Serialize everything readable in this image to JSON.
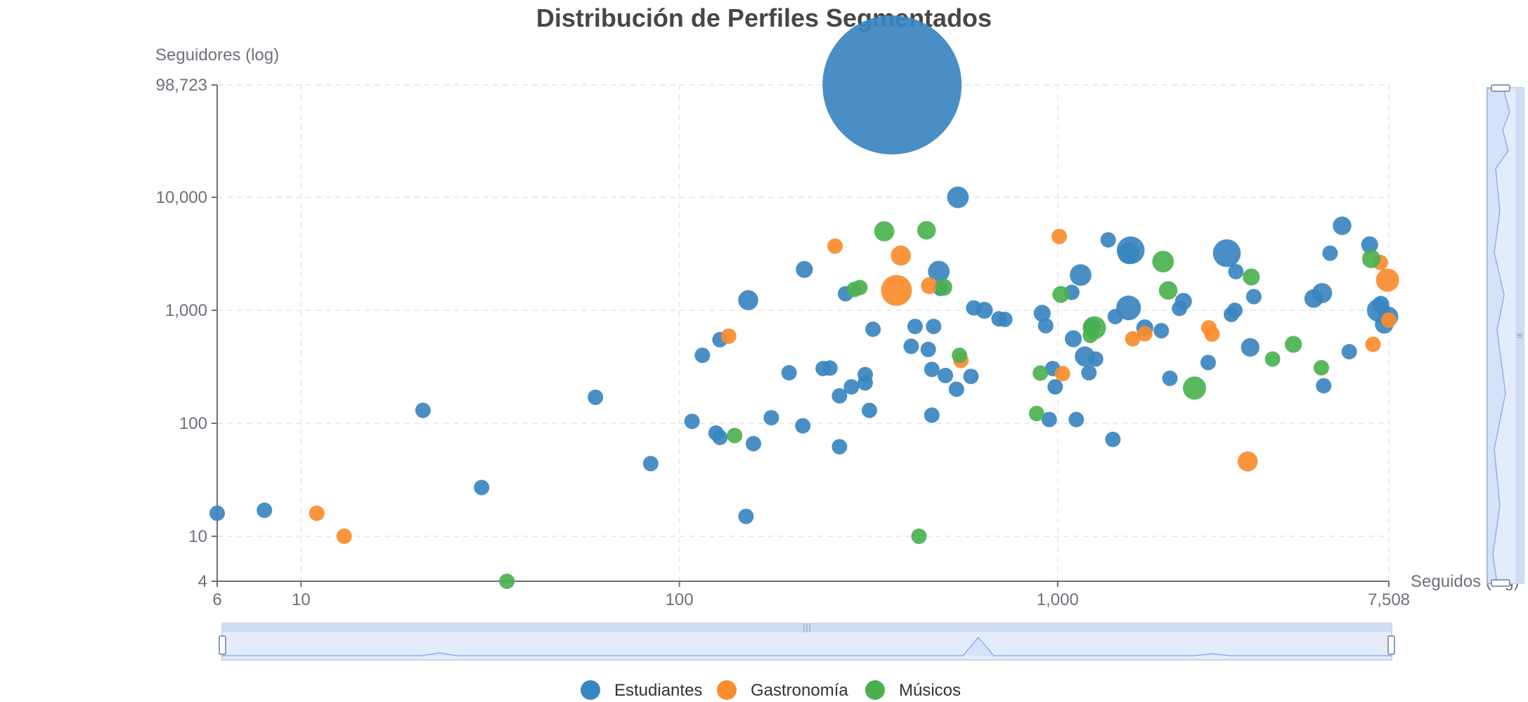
{
  "colors": {
    "series": [
      "#3a86c0",
      "#fa8c2e",
      "#4bb14f"
    ],
    "zoom_fill": "#e4ecfb",
    "zoom_border": "#c7d3ea",
    "zoom_line": "#8fb0e6"
  },
  "chart_data": {
    "type": "scatter",
    "title": "Distribución de Perfiles Segmentados",
    "xlabel": "Seguidos (log)",
    "ylabel": "Seguidores (log)",
    "x_scale": "log",
    "y_scale": "log",
    "xlim": [
      6,
      7508
    ],
    "ylim": [
      4,
      98723
    ],
    "x_ticks": [
      "6",
      "10",
      "100",
      "1,000",
      "7,508"
    ],
    "y_ticks": [
      "4",
      "10",
      "100",
      "1,000",
      "10,000",
      "98,723"
    ],
    "grid": true,
    "legend_position": "bottom",
    "data_zoom": [
      "x-slider-bottom",
      "y-slider-right"
    ],
    "series": [
      {
        "name": "Estudiantes",
        "points": [
          {
            "x": 6,
            "y": 16,
            "s": 1
          },
          {
            "x": 8,
            "y": 17,
            "s": 1
          },
          {
            "x": 21,
            "y": 130,
            "s": 1
          },
          {
            "x": 30,
            "y": 27,
            "s": 1
          },
          {
            "x": 60,
            "y": 170,
            "s": 1
          },
          {
            "x": 84,
            "y": 44,
            "s": 1
          },
          {
            "x": 108,
            "y": 104,
            "s": 1
          },
          {
            "x": 115,
            "y": 400,
            "s": 1
          },
          {
            "x": 125,
            "y": 82,
            "s": 1
          },
          {
            "x": 128,
            "y": 75,
            "s": 1
          },
          {
            "x": 128,
            "y": 550,
            "s": 1
          },
          {
            "x": 150,
            "y": 15,
            "s": 1
          },
          {
            "x": 152,
            "y": 1230,
            "s": 1.3
          },
          {
            "x": 157,
            "y": 66,
            "s": 1
          },
          {
            "x": 175,
            "y": 112,
            "s": 1
          },
          {
            "x": 195,
            "y": 280,
            "s": 1
          },
          {
            "x": 212,
            "y": 95,
            "s": 1
          },
          {
            "x": 214,
            "y": 2300,
            "s": 1.1
          },
          {
            "x": 240,
            "y": 305,
            "s": 1
          },
          {
            "x": 250,
            "y": 308,
            "s": 1
          },
          {
            "x": 265,
            "y": 62,
            "s": 1
          },
          {
            "x": 265,
            "y": 175,
            "s": 1
          },
          {
            "x": 275,
            "y": 1400,
            "s": 1
          },
          {
            "x": 285,
            "y": 210,
            "s": 1
          },
          {
            "x": 310,
            "y": 228,
            "s": 1
          },
          {
            "x": 310,
            "y": 270,
            "s": 1
          },
          {
            "x": 318,
            "y": 130,
            "s": 1
          },
          {
            "x": 325,
            "y": 680,
            "s": 1
          },
          {
            "x": 365,
            "y": 98723,
            "s": 9
          },
          {
            "x": 410,
            "y": 480,
            "s": 1
          },
          {
            "x": 420,
            "y": 720,
            "s": 1
          },
          {
            "x": 455,
            "y": 450,
            "s": 1
          },
          {
            "x": 465,
            "y": 300,
            "s": 1
          },
          {
            "x": 465,
            "y": 118,
            "s": 1
          },
          {
            "x": 470,
            "y": 720,
            "s": 1
          },
          {
            "x": 485,
            "y": 2200,
            "s": 1.4
          },
          {
            "x": 490,
            "y": 1560,
            "s": 1
          },
          {
            "x": 505,
            "y": 265,
            "s": 1
          },
          {
            "x": 540,
            "y": 200,
            "s": 1
          },
          {
            "x": 545,
            "y": 10000,
            "s": 1.4
          },
          {
            "x": 590,
            "y": 260,
            "s": 1
          },
          {
            "x": 600,
            "y": 1050,
            "s": 1
          },
          {
            "x": 640,
            "y": 1000,
            "s": 1.1
          },
          {
            "x": 700,
            "y": 840,
            "s": 1
          },
          {
            "x": 725,
            "y": 830,
            "s": 1
          },
          {
            "x": 910,
            "y": 940,
            "s": 1.1
          },
          {
            "x": 930,
            "y": 730,
            "s": 1
          },
          {
            "x": 950,
            "y": 108,
            "s": 1
          },
          {
            "x": 970,
            "y": 305,
            "s": 1
          },
          {
            "x": 985,
            "y": 210,
            "s": 1
          },
          {
            "x": 1090,
            "y": 1440,
            "s": 1
          },
          {
            "x": 1100,
            "y": 560,
            "s": 1.1
          },
          {
            "x": 1120,
            "y": 108,
            "s": 1
          },
          {
            "x": 1180,
            "y": 390,
            "s": 1.3
          },
          {
            "x": 1210,
            "y": 280,
            "s": 1
          },
          {
            "x": 1230,
            "y": 720,
            "s": 1.1
          },
          {
            "x": 1260,
            "y": 370,
            "s": 1
          },
          {
            "x": 1360,
            "y": 4200,
            "s": 1
          },
          {
            "x": 1400,
            "y": 72,
            "s": 1
          },
          {
            "x": 1420,
            "y": 880,
            "s": 1
          },
          {
            "x": 1150,
            "y": 2050,
            "s": 1.4
          },
          {
            "x": 1540,
            "y": 1050,
            "s": 1.6
          },
          {
            "x": 1540,
            "y": 3200,
            "s": 1.4
          },
          {
            "x": 1560,
            "y": 3400,
            "s": 1.8
          },
          {
            "x": 1700,
            "y": 700,
            "s": 1.1
          },
          {
            "x": 1880,
            "y": 660,
            "s": 1
          },
          {
            "x": 1980,
            "y": 250,
            "s": 1
          },
          {
            "x": 2100,
            "y": 1040,
            "s": 1
          },
          {
            "x": 2150,
            "y": 1200,
            "s": 1.1
          },
          {
            "x": 2500,
            "y": 345,
            "s": 1
          },
          {
            "x": 2800,
            "y": 3200,
            "s": 1.8
          },
          {
            "x": 2880,
            "y": 920,
            "s": 1
          },
          {
            "x": 2940,
            "y": 1000,
            "s": 1
          },
          {
            "x": 2960,
            "y": 2200,
            "s": 1
          },
          {
            "x": 3230,
            "y": 470,
            "s": 1.2
          },
          {
            "x": 3300,
            "y": 1320,
            "s": 1
          },
          {
            "x": 4750,
            "y": 1270,
            "s": 1.2
          },
          {
            "x": 5000,
            "y": 1420,
            "s": 1.3
          },
          {
            "x": 5050,
            "y": 215,
            "s": 1
          },
          {
            "x": 5250,
            "y": 3200,
            "s": 1
          },
          {
            "x": 5650,
            "y": 5600,
            "s": 1.2
          },
          {
            "x": 5900,
            "y": 430,
            "s": 1
          },
          {
            "x": 6680,
            "y": 3800,
            "s": 1.1
          },
          {
            "x": 7050,
            "y": 1000,
            "s": 1.5
          },
          {
            "x": 7150,
            "y": 1130,
            "s": 1.1
          },
          {
            "x": 7300,
            "y": 750,
            "s": 1.2
          },
          {
            "x": 7480,
            "y": 880,
            "s": 1.3
          }
        ]
      },
      {
        "name": "Gastronomía",
        "points": [
          {
            "x": 11,
            "y": 16,
            "s": 1
          },
          {
            "x": 13,
            "y": 10,
            "s": 1
          },
          {
            "x": 135,
            "y": 590,
            "s": 1
          },
          {
            "x": 258,
            "y": 3700,
            "s": 1
          },
          {
            "x": 375,
            "y": 1500,
            "s": 2
          },
          {
            "x": 385,
            "y": 3050,
            "s": 1.3
          },
          {
            "x": 458,
            "y": 1650,
            "s": 1.1
          },
          {
            "x": 555,
            "y": 360,
            "s": 1
          },
          {
            "x": 1010,
            "y": 4500,
            "s": 1
          },
          {
            "x": 1030,
            "y": 275,
            "s": 1
          },
          {
            "x": 1580,
            "y": 560,
            "s": 1
          },
          {
            "x": 1700,
            "y": 620,
            "s": 1
          },
          {
            "x": 2510,
            "y": 700,
            "s": 1
          },
          {
            "x": 2560,
            "y": 615,
            "s": 1
          },
          {
            "x": 3180,
            "y": 46,
            "s": 1.3
          },
          {
            "x": 6820,
            "y": 500,
            "s": 1
          },
          {
            "x": 7130,
            "y": 2650,
            "s": 1
          },
          {
            "x": 7450,
            "y": 1850,
            "s": 1.5
          },
          {
            "x": 7500,
            "y": 820,
            "s": 1
          }
        ]
      },
      {
        "name": "Músicos",
        "points": [
          {
            "x": 35,
            "y": 4,
            "s": 1
          },
          {
            "x": 140,
            "y": 78,
            "s": 1
          },
          {
            "x": 290,
            "y": 1530,
            "s": 1
          },
          {
            "x": 300,
            "y": 1590,
            "s": 1
          },
          {
            "x": 348,
            "y": 5000,
            "s": 1.3
          },
          {
            "x": 430,
            "y": 10,
            "s": 1
          },
          {
            "x": 450,
            "y": 5100,
            "s": 1.2
          },
          {
            "x": 500,
            "y": 1600,
            "s": 1.1
          },
          {
            "x": 550,
            "y": 400,
            "s": 1
          },
          {
            "x": 880,
            "y": 122,
            "s": 1
          },
          {
            "x": 900,
            "y": 278,
            "s": 1
          },
          {
            "x": 1020,
            "y": 1380,
            "s": 1.1
          },
          {
            "x": 1220,
            "y": 600,
            "s": 1
          },
          {
            "x": 1250,
            "y": 700,
            "s": 1.5
          },
          {
            "x": 1900,
            "y": 2700,
            "s": 1.4
          },
          {
            "x": 1960,
            "y": 1500,
            "s": 1.2
          },
          {
            "x": 2300,
            "y": 205,
            "s": 1.5
          },
          {
            "x": 3250,
            "y": 1970,
            "s": 1.1
          },
          {
            "x": 3700,
            "y": 370,
            "s": 1
          },
          {
            "x": 4200,
            "y": 500,
            "s": 1.1
          },
          {
            "x": 4980,
            "y": 310,
            "s": 1
          },
          {
            "x": 6750,
            "y": 2850,
            "s": 1.2
          }
        ]
      }
    ]
  }
}
